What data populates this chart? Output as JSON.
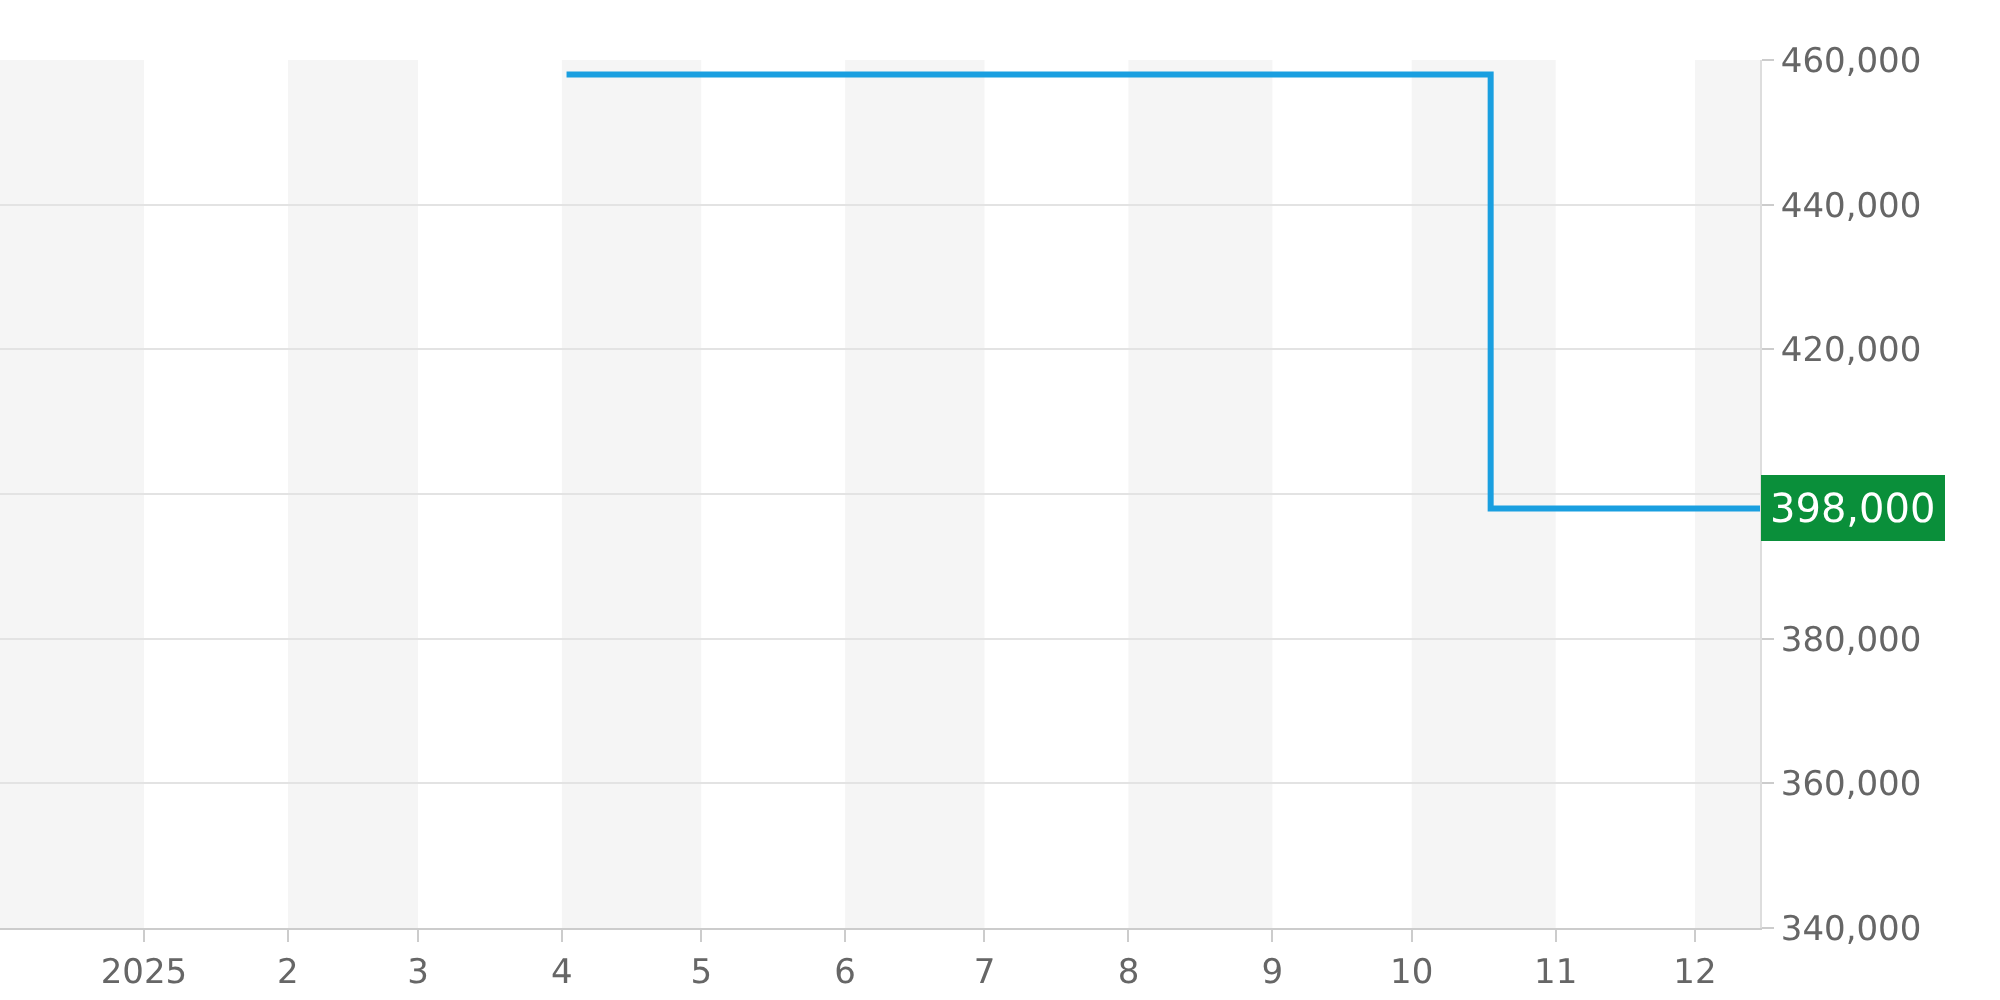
{
  "chart_data": {
    "type": "step",
    "x": [
      "2025-04-02",
      "2025-10-18",
      "2025-12-15"
    ],
    "series": [
      {
        "color": "#1a9fe0",
        "values": [
          458000,
          398000,
          398000
        ]
      }
    ],
    "xlim": [
      "2024-12-01",
      "2025-12-15"
    ],
    "xticks": [
      {
        "value": "2025-01-01",
        "label": "2025"
      },
      {
        "value": "2025-02-01",
        "label": "2"
      },
      {
        "value": "2025-03-01",
        "label": "3"
      },
      {
        "value": "2025-04-01",
        "label": "4"
      },
      {
        "value": "2025-05-01",
        "label": "5"
      },
      {
        "value": "2025-06-01",
        "label": "6"
      },
      {
        "value": "2025-07-01",
        "label": "7"
      },
      {
        "value": "2025-08-01",
        "label": "8"
      },
      {
        "value": "2025-09-01",
        "label": "9"
      },
      {
        "value": "2025-10-01",
        "label": "10"
      },
      {
        "value": "2025-11-01",
        "label": "11"
      },
      {
        "value": "2025-12-01",
        "label": "12"
      }
    ],
    "ylim": [
      340000,
      460000
    ],
    "yticks": [
      {
        "value": 340000,
        "label": "340,000"
      },
      {
        "value": 360000,
        "label": "360,000"
      },
      {
        "value": 380000,
        "label": "380,000"
      },
      {
        "value": 400000,
        "label": null
      },
      {
        "value": 420000,
        "label": "420,000"
      },
      {
        "value": 440000,
        "label": "440,000"
      },
      {
        "value": 460000,
        "label": "460,000"
      }
    ],
    "bands": [
      {
        "axis": "x",
        "from": "2024-12-01",
        "to": "2025-01-01",
        "color": "#f5f5f5"
      },
      {
        "axis": "x",
        "from": "2025-02-01",
        "to": "2025-03-01",
        "color": "#f5f5f5"
      },
      {
        "axis": "x",
        "from": "2025-04-01",
        "to": "2025-05-01",
        "color": "#f5f5f5"
      },
      {
        "axis": "x",
        "from": "2025-06-01",
        "to": "2025-07-01",
        "color": "#f5f5f5"
      },
      {
        "axis": "x",
        "from": "2025-08-01",
        "to": "2025-09-01",
        "color": "#f5f5f5"
      },
      {
        "axis": "x",
        "from": "2025-10-01",
        "to": "2025-11-01",
        "color": "#f5f5f5"
      },
      {
        "axis": "x",
        "from": "2025-12-01",
        "to": "2025-12-15",
        "color": "#f5f5f5"
      }
    ],
    "annotations": [
      {
        "text": "398,000",
        "x": "2025-12-15",
        "y": 398000
      }
    ],
    "grid": "y"
  }
}
